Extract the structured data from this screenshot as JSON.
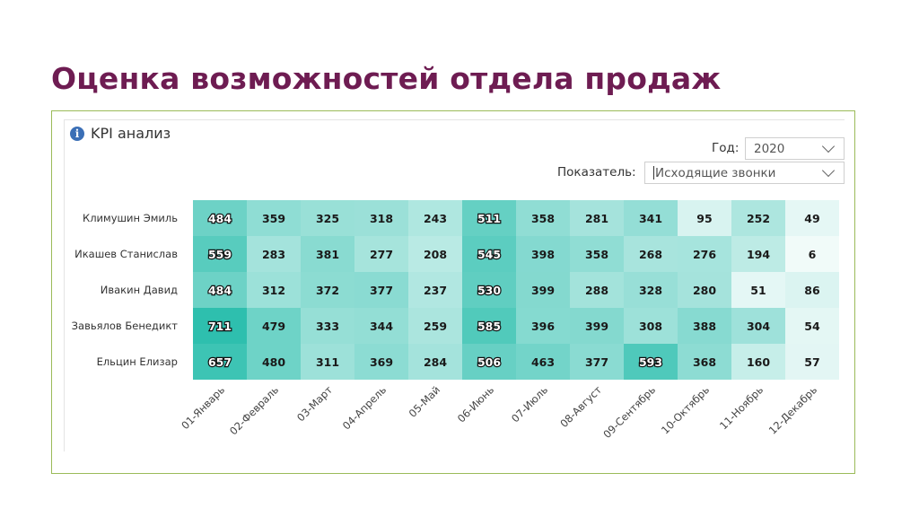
{
  "slide": {
    "title": "Оценка возможностей отдела продаж"
  },
  "panel": {
    "title": "KPI анализ"
  },
  "controls": {
    "year_label": "Год:",
    "year_value": "2020",
    "metric_label": "Показатель:",
    "metric_value": "Исходящие звонки"
  },
  "colors": {
    "title": "#6e1c52",
    "frame": "#9bbb59",
    "heat_low": "#ffffff",
    "heat_high": "#2ebfae"
  },
  "chart_data": {
    "type": "heatmap",
    "rows": [
      "Климушин Эмиль",
      "Икашев Станислав",
      "Ивакин Давид",
      "Завьялов Бенедикт",
      "Ельцин Елизар"
    ],
    "columns": [
      "01-Январь",
      "02-Февраль",
      "03-Март",
      "04-Апрель",
      "05-Май",
      "06-Июнь",
      "07-Июль",
      "08-Август",
      "09-Сентябрь",
      "10-Октябрь",
      "11-Ноябрь",
      "12-Декабрь"
    ],
    "values": [
      [
        484,
        359,
        325,
        318,
        243,
        511,
        358,
        281,
        341,
        95,
        252,
        49
      ],
      [
        559,
        283,
        381,
        277,
        208,
        545,
        398,
        358,
        268,
        276,
        194,
        6
      ],
      [
        484,
        312,
        372,
        377,
        237,
        530,
        399,
        288,
        328,
        280,
        51,
        86
      ],
      [
        711,
        479,
        333,
        344,
        259,
        585,
        396,
        399,
        308,
        388,
        304,
        54
      ],
      [
        657,
        480,
        311,
        369,
        284,
        506,
        463,
        377,
        593,
        368,
        160,
        57
      ]
    ],
    "color_range": [
      0,
      711
    ],
    "legend": "none"
  }
}
